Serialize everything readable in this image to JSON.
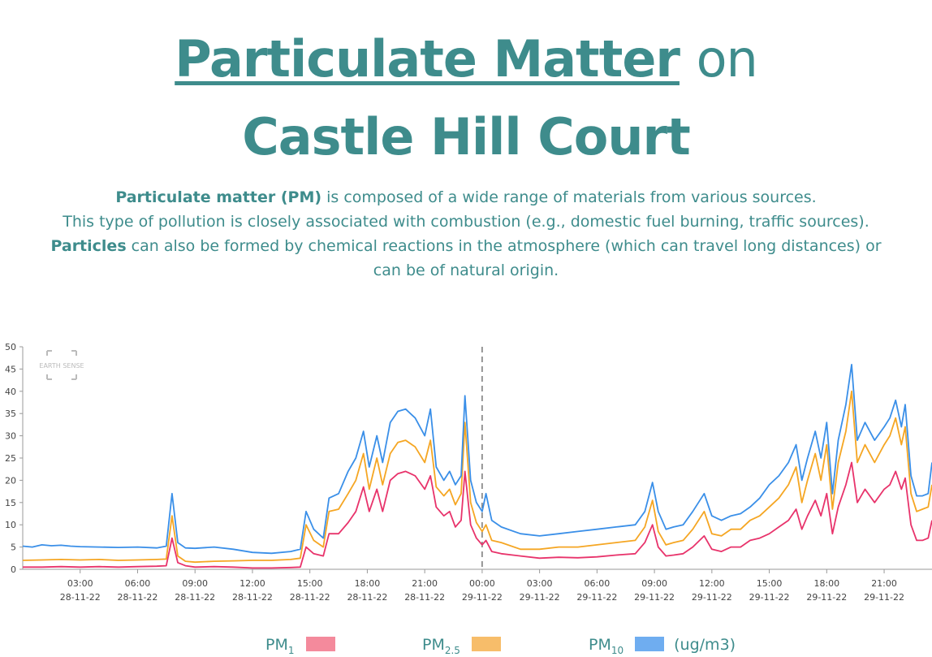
{
  "title": {
    "underlined": "Particulate Matter",
    "connector": "on",
    "line2": "Castle Hill Court"
  },
  "description": {
    "line1_bold": "Particulate matter (PM)",
    "line1_rest": " is composed of a wide range of materials from various sources.",
    "line2": "This type of pollution is closely associated with combustion (e.g., domestic fuel burning, traffic sources).",
    "line3_bold": "Particles",
    "line3_rest": " can also be formed by chemical reactions in the atmosphere (which can travel long distances) or",
    "line4": "can be of natural origin."
  },
  "watermark": "EARTH SENSE",
  "legend": {
    "pm1": {
      "base": "PM",
      "sub": "1"
    },
    "pm25": {
      "base": "PM",
      "sub": "2.5"
    },
    "pm10": {
      "base": "PM",
      "sub": "10"
    },
    "unit": "(ug/m3)"
  },
  "chart_data": {
    "type": "line",
    "ylim": [
      0,
      50
    ],
    "yticks": [
      0,
      5,
      10,
      15,
      20,
      25,
      30,
      35,
      40,
      45,
      50
    ],
    "xlim": [
      0,
      47.5
    ],
    "x_unit": "hours since 00:00 28-11-22",
    "xticks": [
      {
        "x": 3,
        "time": "03:00",
        "date": "28-11-22"
      },
      {
        "x": 6,
        "time": "06:00",
        "date": "28-11-22"
      },
      {
        "x": 9,
        "time": "09:00",
        "date": "28-11-22"
      },
      {
        "x": 12,
        "time": "12:00",
        "date": "28-11-22"
      },
      {
        "x": 15,
        "time": "15:00",
        "date": "28-11-22"
      },
      {
        "x": 18,
        "time": "18:00",
        "date": "28-11-22"
      },
      {
        "x": 21,
        "time": "21:00",
        "date": "28-11-22"
      },
      {
        "x": 24,
        "time": "00:00",
        "date": "29-11-22"
      },
      {
        "x": 27,
        "time": "03:00",
        "date": "29-11-22"
      },
      {
        "x": 30,
        "time": "06:00",
        "date": "29-11-22"
      },
      {
        "x": 33,
        "time": "09:00",
        "date": "29-11-22"
      },
      {
        "x": 36,
        "time": "12:00",
        "date": "29-11-22"
      },
      {
        "x": 39,
        "time": "15:00",
        "date": "29-11-22"
      },
      {
        "x": 42,
        "time": "18:00",
        "date": "29-11-22"
      },
      {
        "x": 45,
        "time": "21:00",
        "date": "29-11-22"
      }
    ],
    "divider_x": 24,
    "series": [
      {
        "name": "PM1",
        "color": "#e8336b",
        "points": [
          [
            0,
            0.5
          ],
          [
            1,
            0.5
          ],
          [
            2,
            0.6
          ],
          [
            3,
            0.5
          ],
          [
            4,
            0.6
          ],
          [
            5,
            0.5
          ],
          [
            6,
            0.6
          ],
          [
            7,
            0.7
          ],
          [
            7.5,
            0.8
          ],
          [
            7.8,
            7
          ],
          [
            8.1,
            1.5
          ],
          [
            8.5,
            0.8
          ],
          [
            9,
            0.5
          ],
          [
            10,
            0.6
          ],
          [
            11,
            0.5
          ],
          [
            12,
            0.3
          ],
          [
            13,
            0.3
          ],
          [
            14,
            0.4
          ],
          [
            14.5,
            0.5
          ],
          [
            14.8,
            5
          ],
          [
            15.2,
            3.5
          ],
          [
            15.7,
            3
          ],
          [
            16,
            8
          ],
          [
            16.5,
            8
          ],
          [
            17,
            10.5
          ],
          [
            17.4,
            13
          ],
          [
            17.8,
            18.5
          ],
          [
            18.1,
            13
          ],
          [
            18.5,
            18
          ],
          [
            18.8,
            13
          ],
          [
            19.2,
            20
          ],
          [
            19.6,
            21.5
          ],
          [
            20,
            22
          ],
          [
            20.5,
            21
          ],
          [
            21,
            18
          ],
          [
            21.3,
            21
          ],
          [
            21.6,
            14
          ],
          [
            22,
            12
          ],
          [
            22.3,
            13
          ],
          [
            22.6,
            9.5
          ],
          [
            22.9,
            11
          ],
          [
            23.1,
            22
          ],
          [
            23.4,
            10
          ],
          [
            23.7,
            7
          ],
          [
            24,
            5.5
          ],
          [
            24.2,
            6.5
          ],
          [
            24.5,
            4
          ],
          [
            25,
            3.5
          ],
          [
            26,
            3
          ],
          [
            27,
            2.5
          ],
          [
            28,
            2.7
          ],
          [
            29,
            2.6
          ],
          [
            30,
            2.8
          ],
          [
            31,
            3.2
          ],
          [
            32,
            3.5
          ],
          [
            32.5,
            6
          ],
          [
            32.9,
            10
          ],
          [
            33.2,
            5
          ],
          [
            33.6,
            3
          ],
          [
            34,
            3.2
          ],
          [
            34.5,
            3.5
          ],
          [
            35,
            5
          ],
          [
            35.6,
            7.5
          ],
          [
            36,
            4.5
          ],
          [
            36.5,
            4
          ],
          [
            37,
            5
          ],
          [
            37.5,
            5
          ],
          [
            38,
            6.5
          ],
          [
            38.5,
            7
          ],
          [
            39,
            8
          ],
          [
            39.5,
            9.5
          ],
          [
            40,
            11
          ],
          [
            40.4,
            13.5
          ],
          [
            40.7,
            9
          ],
          [
            41,
            12
          ],
          [
            41.4,
            15.5
          ],
          [
            41.7,
            12
          ],
          [
            42,
            17
          ],
          [
            42.3,
            8
          ],
          [
            42.6,
            14
          ],
          [
            43,
            19
          ],
          [
            43.3,
            24
          ],
          [
            43.6,
            15
          ],
          [
            44,
            18
          ],
          [
            44.5,
            15
          ],
          [
            45,
            18
          ],
          [
            45.3,
            19
          ],
          [
            45.6,
            22
          ],
          [
            45.9,
            18
          ],
          [
            46.1,
            20.5
          ],
          [
            46.4,
            10
          ],
          [
            46.7,
            6.5
          ],
          [
            47,
            6.5
          ],
          [
            47.3,
            7
          ],
          [
            47.5,
            11
          ]
        ]
      },
      {
        "name": "PM2.5",
        "color": "#f5a623",
        "points": [
          [
            0,
            2
          ],
          [
            1,
            2.1
          ],
          [
            2,
            2.2
          ],
          [
            3,
            2.1
          ],
          [
            4,
            2.2
          ],
          [
            5,
            2
          ],
          [
            6,
            2.1
          ],
          [
            7,
            2.2
          ],
          [
            7.5,
            2.3
          ],
          [
            7.8,
            12
          ],
          [
            8.1,
            3
          ],
          [
            8.5,
            1.8
          ],
          [
            9,
            1.6
          ],
          [
            10,
            1.8
          ],
          [
            11,
            1.9
          ],
          [
            12,
            2
          ],
          [
            13,
            2
          ],
          [
            14,
            2.2
          ],
          [
            14.5,
            2.5
          ],
          [
            14.8,
            10
          ],
          [
            15.2,
            6.5
          ],
          [
            15.7,
            5
          ],
          [
            16,
            13
          ],
          [
            16.5,
            13.5
          ],
          [
            17,
            17
          ],
          [
            17.4,
            20
          ],
          [
            17.8,
            26
          ],
          [
            18.1,
            18
          ],
          [
            18.5,
            25
          ],
          [
            18.8,
            19
          ],
          [
            19.2,
            26
          ],
          [
            19.6,
            28.5
          ],
          [
            20,
            29
          ],
          [
            20.5,
            27.5
          ],
          [
            21,
            24
          ],
          [
            21.3,
            29
          ],
          [
            21.6,
            18.5
          ],
          [
            22,
            16.5
          ],
          [
            22.3,
            18
          ],
          [
            22.6,
            14.5
          ],
          [
            22.9,
            17
          ],
          [
            23.1,
            33
          ],
          [
            23.4,
            15
          ],
          [
            23.7,
            10.5
          ],
          [
            24,
            8.5
          ],
          [
            24.2,
            10
          ],
          [
            24.5,
            6.5
          ],
          [
            25,
            6
          ],
          [
            26,
            4.5
          ],
          [
            27,
            4.5
          ],
          [
            28,
            5
          ],
          [
            29,
            5
          ],
          [
            30,
            5.5
          ],
          [
            31,
            6
          ],
          [
            32,
            6.5
          ],
          [
            32.5,
            9.5
          ],
          [
            32.9,
            15.5
          ],
          [
            33.2,
            8.5
          ],
          [
            33.6,
            5.5
          ],
          [
            34,
            6
          ],
          [
            34.5,
            6.5
          ],
          [
            35,
            9
          ],
          [
            35.6,
            13
          ],
          [
            36,
            8
          ],
          [
            36.5,
            7.5
          ],
          [
            37,
            9
          ],
          [
            37.5,
            9
          ],
          [
            38,
            11
          ],
          [
            38.5,
            12
          ],
          [
            39,
            14
          ],
          [
            39.5,
            16
          ],
          [
            40,
            19
          ],
          [
            40.4,
            23
          ],
          [
            40.7,
            15
          ],
          [
            41,
            20
          ],
          [
            41.4,
            26
          ],
          [
            41.7,
            20
          ],
          [
            42,
            28
          ],
          [
            42.3,
            13.5
          ],
          [
            42.6,
            24
          ],
          [
            43,
            31
          ],
          [
            43.3,
            40
          ],
          [
            43.6,
            24
          ],
          [
            44,
            28
          ],
          [
            44.5,
            24
          ],
          [
            45,
            28
          ],
          [
            45.3,
            30
          ],
          [
            45.6,
            34
          ],
          [
            45.9,
            28
          ],
          [
            46.1,
            32
          ],
          [
            46.4,
            17
          ],
          [
            46.7,
            13
          ],
          [
            47,
            13.5
          ],
          [
            47.3,
            14
          ],
          [
            47.5,
            19
          ]
        ]
      },
      {
        "name": "PM10",
        "color": "#3a8fe8",
        "points": [
          [
            0,
            5.2
          ],
          [
            0.5,
            5
          ],
          [
            1,
            5.5
          ],
          [
            1.5,
            5.3
          ],
          [
            2,
            5.4
          ],
          [
            2.5,
            5.2
          ],
          [
            3,
            5.1
          ],
          [
            4,
            5
          ],
          [
            5,
            4.9
          ],
          [
            6,
            5
          ],
          [
            7,
            4.8
          ],
          [
            7.5,
            5.2
          ],
          [
            7.8,
            17
          ],
          [
            8.1,
            6
          ],
          [
            8.5,
            4.8
          ],
          [
            9,
            4.7
          ],
          [
            10,
            5
          ],
          [
            11,
            4.5
          ],
          [
            12,
            3.8
          ],
          [
            13,
            3.6
          ],
          [
            14,
            4
          ],
          [
            14.5,
            4.5
          ],
          [
            14.8,
            13
          ],
          [
            15.2,
            9
          ],
          [
            15.7,
            7
          ],
          [
            16,
            16
          ],
          [
            16.5,
            17
          ],
          [
            17,
            22
          ],
          [
            17.4,
            25
          ],
          [
            17.8,
            31
          ],
          [
            18.1,
            23
          ],
          [
            18.5,
            30
          ],
          [
            18.8,
            24
          ],
          [
            19.2,
            33
          ],
          [
            19.6,
            35.5
          ],
          [
            20,
            36
          ],
          [
            20.5,
            34
          ],
          [
            21,
            30
          ],
          [
            21.3,
            36
          ],
          [
            21.6,
            23
          ],
          [
            22,
            20
          ],
          [
            22.3,
            22
          ],
          [
            22.6,
            19
          ],
          [
            22.9,
            21
          ],
          [
            23.1,
            39
          ],
          [
            23.4,
            20
          ],
          [
            23.7,
            15
          ],
          [
            24,
            13
          ],
          [
            24.2,
            17
          ],
          [
            24.5,
            11
          ],
          [
            25,
            9.5
          ],
          [
            26,
            8
          ],
          [
            27,
            7.5
          ],
          [
            28,
            8
          ],
          [
            29,
            8.5
          ],
          [
            30,
            9
          ],
          [
            31,
            9.5
          ],
          [
            32,
            10
          ],
          [
            32.5,
            13
          ],
          [
            32.9,
            19.5
          ],
          [
            33.2,
            13
          ],
          [
            33.6,
            9
          ],
          [
            34,
            9.5
          ],
          [
            34.5,
            10
          ],
          [
            35,
            13
          ],
          [
            35.6,
            17
          ],
          [
            36,
            12
          ],
          [
            36.5,
            11
          ],
          [
            37,
            12
          ],
          [
            37.5,
            12.5
          ],
          [
            38,
            14
          ],
          [
            38.5,
            16
          ],
          [
            39,
            19
          ],
          [
            39.5,
            21
          ],
          [
            40,
            24
          ],
          [
            40.4,
            28
          ],
          [
            40.7,
            20
          ],
          [
            41,
            25
          ],
          [
            41.4,
            31
          ],
          [
            41.7,
            25
          ],
          [
            42,
            33
          ],
          [
            42.3,
            17
          ],
          [
            42.6,
            29
          ],
          [
            43,
            37
          ],
          [
            43.3,
            46
          ],
          [
            43.6,
            29
          ],
          [
            44,
            33
          ],
          [
            44.5,
            29
          ],
          [
            45,
            32
          ],
          [
            45.3,
            34
          ],
          [
            45.6,
            38
          ],
          [
            45.9,
            32
          ],
          [
            46.1,
            37
          ],
          [
            46.4,
            21
          ],
          [
            46.7,
            16.5
          ],
          [
            47,
            16.5
          ],
          [
            47.3,
            17
          ],
          [
            47.5,
            24
          ]
        ]
      }
    ]
  }
}
